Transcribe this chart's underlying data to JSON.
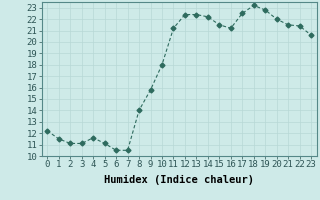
{
  "x": [
    0,
    1,
    2,
    3,
    4,
    5,
    6,
    7,
    8,
    9,
    10,
    11,
    12,
    13,
    14,
    15,
    16,
    17,
    18,
    19,
    20,
    21,
    22,
    23
  ],
  "y": [
    12.2,
    11.5,
    11.1,
    11.1,
    11.6,
    11.1,
    10.5,
    10.5,
    14.0,
    15.8,
    18.0,
    21.2,
    22.4,
    22.4,
    22.2,
    21.5,
    21.2,
    22.5,
    23.2,
    22.8,
    22.0,
    21.5,
    21.4,
    20.6
  ],
  "xlabel": "Humidex (Indice chaleur)",
  "ylim": [
    10,
    23.5
  ],
  "xlim": [
    -0.5,
    23.5
  ],
  "yticks": [
    10,
    11,
    12,
    13,
    14,
    15,
    16,
    17,
    18,
    19,
    20,
    21,
    22,
    23
  ],
  "xticks": [
    0,
    1,
    2,
    3,
    4,
    5,
    6,
    7,
    8,
    9,
    10,
    11,
    12,
    13,
    14,
    15,
    16,
    17,
    18,
    19,
    20,
    21,
    22,
    23
  ],
  "line_color": "#2e6b5e",
  "marker": "D",
  "marker_size": 2.5,
  "bg_color": "#ceeae8",
  "grid_color": "#b8d8d6",
  "label_fontsize": 7.5,
  "tick_fontsize": 6.5
}
